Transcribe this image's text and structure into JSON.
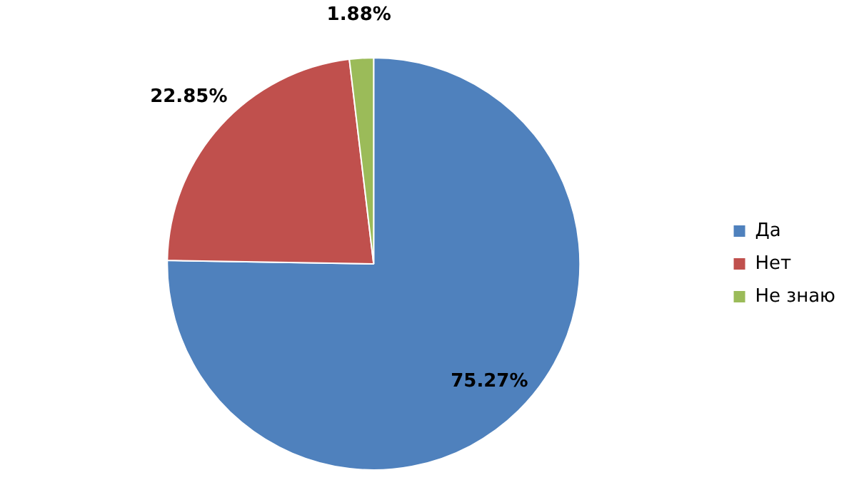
{
  "chart_data": {
    "type": "pie",
    "categories": [
      "Да",
      "Нет",
      "Не знаю"
    ],
    "values": [
      75.27,
      22.85,
      1.88
    ],
    "colors": [
      "#4f81bd",
      "#c0504d",
      "#9bbb59"
    ],
    "value_labels": [
      "75.27%",
      "22.85%",
      "1.88%"
    ],
    "legend": "right"
  }
}
